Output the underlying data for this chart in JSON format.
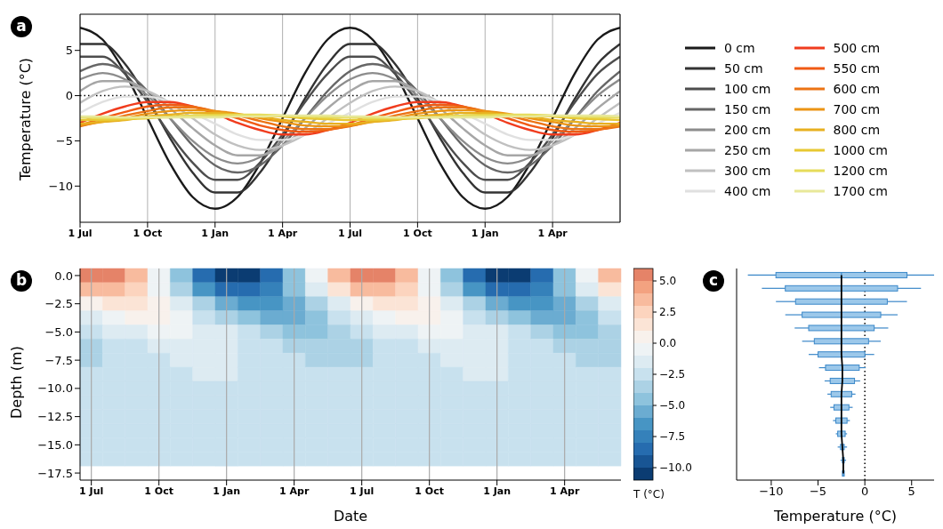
{
  "chart_data": [
    {
      "type": "line",
      "ylabel": "Temperature (°C)",
      "annotations": [
        "a"
      ],
      "legend": "right",
      "grid": "x",
      "categories": [
        "1 Jul",
        null,
        null,
        "1 Oct",
        null,
        null,
        "1 Jan",
        null,
        null,
        "1 Apr",
        null,
        null,
        "1 Jul",
        null,
        null,
        "1 Oct",
        null,
        null,
        "1 Jan",
        null,
        null,
        "1 Apr",
        null,
        null,
        null
      ],
      "ylim": [
        -14,
        9
      ],
      "yticks": [
        {
          "value": -10,
          "label": "−10"
        },
        {
          "value": -5,
          "label": "−5"
        },
        {
          "value": 0,
          "label": "0"
        },
        {
          "value": 5,
          "label": "5"
        }
      ],
      "ref_lines": [
        {
          "axis": "y",
          "value": 0,
          "color": "#000000",
          "line_style": "dotted"
        }
      ],
      "series": [
        {
          "name": "0 cm",
          "color": "#1a1a1a",
          "values": [
            7.5,
            6.2,
            2.5,
            -2.5,
            -7.5,
            -11.2,
            -12.5,
            -11.2,
            -7.5,
            -2.5,
            2.5,
            6.2,
            7.5,
            6.2,
            2.5,
            -2.5,
            -7.5,
            -11.2,
            -12.5,
            -11.2,
            -7.5,
            -2.5,
            2.5,
            6.2,
            7.5
          ]
        },
        {
          "name": "50 cm",
          "color": "#333333",
          "values": [
            5.7,
            5.7,
            3.5,
            -0.3,
            -4.7,
            -8.5,
            -10.7,
            -10.7,
            -8.5,
            -4.7,
            -0.3,
            3.5,
            5.7,
            5.7,
            3.5,
            -0.3,
            -4.7,
            -8.5,
            -10.7,
            -10.7,
            -8.5,
            -4.7,
            -0.3,
            3.5,
            5.7
          ]
        },
        {
          "name": "100 cm",
          "color": "#4d4d4d",
          "values": [
            4.3,
            4.3,
            2.4,
            -0.7,
            -4.3,
            -7.4,
            -9.3,
            -9.3,
            -7.4,
            -4.3,
            -0.7,
            2.4,
            4.3,
            4.3,
            2.4,
            -0.7,
            -4.3,
            -7.4,
            -9.3,
            -9.3,
            -7.4,
            -4.3,
            -0.7,
            2.4,
            4.3
          ]
        },
        {
          "name": "150 cm",
          "color": "#666666",
          "values": [
            2.7,
            3.5,
            2.7,
            0.5,
            -2.5,
            -5.5,
            -7.7,
            -8.5,
            -7.7,
            -5.5,
            -2.5,
            0.5,
            2.7,
            3.5,
            2.7,
            0.5,
            -2.5,
            -5.5,
            -7.7,
            -8.5,
            -7.7,
            -5.5,
            -2.5,
            0.5,
            2.7
          ]
        },
        {
          "name": "200 cm",
          "color": "#8c8c8c",
          "values": [
            1.8,
            2.5,
            1.8,
            0,
            -2.5,
            -5,
            -6.8,
            -7.5,
            -6.8,
            -5,
            -2.5,
            0,
            1.8,
            2.5,
            1.8,
            0,
            -2.5,
            -5,
            -6.8,
            -7.5,
            -6.8,
            -5,
            -2.5,
            0,
            1.8
          ]
        },
        {
          "name": "250 cm",
          "color": "#a6a6a6",
          "values": [
            0.5,
            1.6,
            1.6,
            0.5,
            -1.4,
            -3.6,
            -5.5,
            -6.6,
            -6.6,
            -5.5,
            -3.6,
            -1.4,
            0.5,
            1.6,
            1.6,
            0.5,
            -1.4,
            -3.6,
            -5.5,
            -6.6,
            -6.6,
            -5.5,
            -3.6,
            -1.4,
            0.5
          ]
        },
        {
          "name": "300 cm",
          "color": "#c0c0c0",
          "values": [
            -0.8,
            0.5,
            1,
            0.5,
            -0.8,
            -2.5,
            -4.3,
            -5.5,
            -6,
            -5.5,
            -4.3,
            -2.5,
            -0.8,
            0.5,
            1,
            0.5,
            -0.8,
            -2.5,
            -4.3,
            -5.5,
            -6,
            -5.5,
            -4.3,
            -2.5,
            -0.8
          ]
        },
        {
          "name": "400 cm",
          "color": "#e0e0e0",
          "values": [
            -1.9,
            -0.7,
            -0.1,
            -0.1,
            -0.7,
            -1.9,
            -3.1,
            -4.3,
            -4.9,
            -4.9,
            -4.3,
            -3.1,
            -1.9,
            -0.7,
            -0.1,
            -0.1,
            -0.7,
            -1.9,
            -3.1,
            -4.3,
            -4.9,
            -4.9,
            -4.3,
            -3.1,
            -1.9
          ]
        },
        {
          "name": "500 cm",
          "color": "#f03c1e",
          "values": [
            -3,
            -2,
            -1.2,
            -0.7,
            -0.7,
            -1.2,
            -2,
            -3,
            -3.8,
            -4.3,
            -4.3,
            -3.8,
            -3,
            -2,
            -1.2,
            -0.7,
            -0.7,
            -1.2,
            -2,
            -3,
            -3.8,
            -4.3,
            -4.3,
            -3.8,
            -3
          ]
        },
        {
          "name": "550 cm",
          "color": "#f05a14",
          "values": [
            -3.3,
            -2.5,
            -1.8,
            -1.2,
            -1,
            -1.2,
            -1.8,
            -2.5,
            -3.3,
            -3.8,
            -4,
            -3.8,
            -3.3,
            -2.5,
            -1.8,
            -1.2,
            -1,
            -1.2,
            -1.8,
            -2.5,
            -3.3,
            -3.8,
            -4,
            -3.8,
            -3.3
          ]
        },
        {
          "name": "600 cm",
          "color": "#ec7314",
          "values": [
            -3.4,
            -2.8,
            -2.2,
            -1.7,
            -1.3,
            -1.3,
            -1.7,
            -2.2,
            -2.8,
            -3.4,
            -3.7,
            -3.7,
            -3.4,
            -2.8,
            -2.2,
            -1.7,
            -1.3,
            -1.3,
            -1.7,
            -2.2,
            -2.8,
            -3.4,
            -3.7,
            -3.7,
            -3.4
          ]
        },
        {
          "name": "700 cm",
          "color": "#ec9414",
          "values": [
            -3.3,
            -2.9,
            -2.5,
            -2,
            -1.7,
            -1.6,
            -1.7,
            -2,
            -2.5,
            -2.9,
            -3.3,
            -3.4,
            -3.3,
            -2.9,
            -2.5,
            -2,
            -1.7,
            -1.6,
            -1.7,
            -2,
            -2.5,
            -2.9,
            -3.3,
            -3.4,
            -3.3
          ]
        },
        {
          "name": "800 cm",
          "color": "#e8b020",
          "values": [
            -3.1,
            -2.9,
            -2.7,
            -2.3,
            -2.1,
            -1.9,
            -1.9,
            -2.1,
            -2.3,
            -2.7,
            -2.9,
            -3.1,
            -3.1,
            -2.9,
            -2.7,
            -2.3,
            -2.1,
            -1.9,
            -1.9,
            -2.1,
            -2.3,
            -2.7,
            -2.9,
            -3.1,
            -3.1
          ]
        },
        {
          "name": "1000 cm",
          "color": "#e8c832",
          "values": [
            -2.7,
            -2.7,
            -2.6,
            -2.5,
            -2.3,
            -2.2,
            -2.1,
            -2.1,
            -2.2,
            -2.3,
            -2.5,
            -2.6,
            -2.7,
            -2.7,
            -2.6,
            -2.5,
            -2.3,
            -2.2,
            -2.1,
            -2.1,
            -2.2,
            -2.3,
            -2.5,
            -2.6,
            -2.7
          ]
        },
        {
          "name": "1200 cm",
          "color": "#e6dc5a",
          "values": [
            -2.4,
            -2.5,
            -2.5,
            -2.4,
            -2.4,
            -2.2,
            -2.2,
            -2.1,
            -2.1,
            -2.2,
            -2.3,
            -2.4,
            -2.4,
            -2.5,
            -2.5,
            -2.4,
            -2.4,
            -2.2,
            -2.2,
            -2.1,
            -2.1,
            -2.2,
            -2.3,
            -2.4,
            -2.4
          ]
        },
        {
          "name": "1700 cm",
          "color": "#e8e89a",
          "values": [
            -2.3,
            -2.3,
            -2.4,
            -2.4,
            -2.4,
            -2.4,
            -2.4,
            -2.3,
            -2.3,
            -2.2,
            -2.2,
            -2.2,
            -2.3,
            -2.3,
            -2.4,
            -2.4,
            -2.4,
            -2.4,
            -2.4,
            -2.3,
            -2.3,
            -2.2,
            -2.2,
            -2.2,
            -2.3
          ]
        }
      ]
    },
    {
      "type": "heatmap",
      "xlabel": "Date",
      "ylabel": "Depth (m)",
      "clabel": "T (°C)",
      "annotations": [
        "b"
      ],
      "grid": "x",
      "categories": [
        "1 Jul",
        null,
        null,
        "1 Oct",
        null,
        null,
        "1 Jan",
        null,
        null,
        "1 Apr",
        null,
        null,
        "1 Jul",
        null,
        null,
        "1 Oct",
        null,
        null,
        "1 Jan",
        null,
        null,
        "1 Apr",
        null,
        null
      ],
      "y_categories": [
        "0.0",
        null,
        "−2.5",
        null,
        "−5.0",
        null,
        "−7.5",
        null,
        "−10.0",
        null,
        "−12.5",
        null,
        "−15.0",
        null,
        "−17.5"
      ],
      "clim": [
        -11,
        6
      ],
      "cticks": [
        {
          "value": -10,
          "label": "−10.0"
        },
        {
          "value": -7.5,
          "label": "−7.5"
        },
        {
          "value": -5,
          "label": "−5.0"
        },
        {
          "value": -2.5,
          "label": "−2.5"
        },
        {
          "value": 0,
          "label": "0.0"
        },
        {
          "value": 2.5,
          "label": "2.5"
        },
        {
          "value": 5,
          "label": "5.0"
        }
      ],
      "cells": [
        [
          5.7,
          5.7,
          3.5,
          -0.3,
          -4.7,
          -8.5,
          -10.7,
          -10.7,
          -8.5,
          -4.7,
          -0.3,
          3.5,
          5.7,
          5.7,
          3.5,
          -0.3,
          -4.7,
          -8.5,
          -10.7,
          -10.7,
          -8.5,
          -4.7,
          -0.3,
          3.5
        ],
        [
          3.5,
          3.9,
          2.6,
          -0.1,
          -3.4,
          -6.5,
          -8.5,
          -8.9,
          -7.6,
          -4.9,
          -1.6,
          1.5,
          3.5,
          3.9,
          2.6,
          -0.1,
          -3.4,
          -6.5,
          -8.5,
          -8.9,
          -7.6,
          -4.9,
          -1.6,
          1.5
        ],
        [
          0.5,
          1.6,
          1.6,
          0.5,
          -1.4,
          -3.6,
          -5.5,
          -6.6,
          -6.6,
          -5.5,
          -3.6,
          -1.4,
          0.5,
          1.6,
          1.6,
          0.5,
          -1.4,
          -3.6,
          -5.5,
          -6.6,
          -6.6,
          -5.5,
          -3.6,
          -1.4
        ],
        [
          -1.6,
          -0.4,
          0.2,
          0.1,
          -0.7,
          -2.1,
          -3.4,
          -4.6,
          -5.2,
          -5.1,
          -4.3,
          -2.9,
          -1.6,
          -0.4,
          0.2,
          0.1,
          -0.7,
          -2.1,
          -3.4,
          -4.6,
          -5.2,
          -5.1,
          -4.3,
          -2.9
        ],
        [
          -3,
          -2,
          -1.2,
          -0.7,
          -0.7,
          -1.2,
          -2,
          -3,
          -3.8,
          -4.3,
          -4.3,
          -3.8,
          -3,
          -2,
          -1.2,
          -0.7,
          -0.7,
          -1.2,
          -2,
          -3,
          -3.8,
          -4.3,
          -4.3,
          -3.8
        ],
        [
          -3.4,
          -2.9,
          -2.4,
          -1.9,
          -1.5,
          -1.5,
          -1.7,
          -2.1,
          -2.6,
          -3.1,
          -3.5,
          -3.5,
          -3.4,
          -2.9,
          -2.4,
          -1.9,
          -1.5,
          -1.5,
          -1.7,
          -2.1,
          -2.6,
          -3.1,
          -3.5,
          -3.5
        ],
        [
          -3.2,
          -2.9,
          -2.6,
          -2.2,
          -1.9,
          -1.8,
          -1.8,
          -2.1,
          -2.4,
          -2.8,
          -3.1,
          -3.3,
          -3.2,
          -2.9,
          -2.6,
          -2.2,
          -1.9,
          -1.8,
          -1.8,
          -2.1,
          -2.4,
          -2.8,
          -3.1,
          -3.3
        ],
        [
          -2.9,
          -2.8,
          -2.7,
          -2.4,
          -2.2,
          -2,
          -2,
          -2.1,
          -2.3,
          -2.5,
          -2.7,
          -2.9,
          -2.9,
          -2.8,
          -2.7,
          -2.4,
          -2.2,
          -2,
          -2,
          -2.1,
          -2.3,
          -2.5,
          -2.7,
          -2.9
        ],
        [
          -2.7,
          -2.7,
          -2.6,
          -2.5,
          -2.3,
          -2.2,
          -2.1,
          -2.1,
          -2.2,
          -2.3,
          -2.5,
          -2.6,
          -2.7,
          -2.7,
          -2.6,
          -2.5,
          -2.3,
          -2.2,
          -2.1,
          -2.1,
          -2.2,
          -2.3,
          -2.5,
          -2.6
        ],
        [
          -2.5,
          -2.6,
          -2.5,
          -2.5,
          -2.3,
          -2.2,
          -2.1,
          -2.1,
          -2.2,
          -2.2,
          -2.4,
          -2.5,
          -2.5,
          -2.6,
          -2.5,
          -2.5,
          -2.3,
          -2.2,
          -2.1,
          -2.1,
          -2.2,
          -2.2,
          -2.4,
          -2.5
        ],
        [
          -2.4,
          -2.5,
          -2.5,
          -2.4,
          -2.4,
          -2.2,
          -2.2,
          -2.1,
          -2.1,
          -2.2,
          -2.3,
          -2.4,
          -2.4,
          -2.5,
          -2.5,
          -2.4,
          -2.4,
          -2.2,
          -2.2,
          -2.1,
          -2.1,
          -2.2,
          -2.3,
          -2.4
        ],
        [
          -2.3,
          -2.3,
          -2.4,
          -2.4,
          -2.4,
          -2.4,
          -2.4,
          -2.3,
          -2.3,
          -2.2,
          -2.2,
          -2.2,
          -2.3,
          -2.3,
          -2.4,
          -2.4,
          -2.4,
          -2.4,
          -2.4,
          -2.3,
          -2.3,
          -2.2,
          -2.2,
          -2.2
        ],
        [
          -2.3,
          -2.3,
          -2.4,
          -2.4,
          -2.4,
          -2.4,
          -2.4,
          -2.3,
          -2.3,
          -2.2,
          -2.2,
          -2.2,
          -2.3,
          -2.3,
          -2.4,
          -2.4,
          -2.4,
          -2.4,
          -2.4,
          -2.3,
          -2.3,
          -2.2,
          -2.2,
          -2.2
        ],
        [
          -2.3,
          -2.3,
          -2.4,
          -2.4,
          -2.4,
          -2.4,
          -2.4,
          -2.3,
          -2.3,
          -2.2,
          -2.2,
          -2.2,
          -2.3,
          -2.3,
          -2.4,
          -2.4,
          -2.4,
          -2.4,
          -2.4,
          -2.3,
          -2.3,
          -2.2,
          -2.2,
          -2.2
        ],
        [
          null,
          null,
          null,
          null,
          null,
          null,
          null,
          null,
          null,
          null,
          null,
          null,
          null,
          null,
          null,
          null,
          null,
          null,
          null,
          null,
          null,
          null,
          null,
          null
        ]
      ]
    },
    {
      "type": "box",
      "orientation": "horizontal",
      "xlabel": "Temperature (°C)",
      "annotations": [
        "c"
      ],
      "tick_labels": "x",
      "xlim": [
        -13.7,
        7.4
      ],
      "xticks": [
        {
          "value": -10,
          "label": "−10"
        },
        {
          "value": -5,
          "label": "−5"
        },
        {
          "value": 0,
          "label": "0"
        },
        {
          "value": 5,
          "label": "5"
        }
      ],
      "categories": [
        null,
        null,
        null,
        null,
        null,
        null,
        null,
        null,
        null,
        null,
        null,
        null,
        null,
        null,
        null,
        null
      ],
      "ref_lines": [
        {
          "axis": "x",
          "value": 0,
          "color": "#000000",
          "line_style": "dotted"
        }
      ],
      "series": [
        {
          "type": "box",
          "color": "#3a87c8",
          "boxes": [
            {
              "low": -12.5,
              "q1": -9.5,
              "median": -2.5,
              "q3": 4.5,
              "high": 7.5
            },
            {
              "low": -11,
              "q1": -8.5,
              "median": -2.5,
              "q3": 3.5,
              "high": 6
            },
            {
              "low": -9.5,
              "q1": -7.4,
              "median": -2.5,
              "q3": 2.4,
              "high": 4.5
            },
            {
              "low": -8.5,
              "q1": -6.7,
              "median": -2.5,
              "q3": 1.7,
              "high": 3.5
            },
            {
              "low": -7.5,
              "q1": -6,
              "median": -2.5,
              "q3": 1,
              "high": 2.5
            },
            {
              "low": -6.7,
              "q1": -5.4,
              "median": -2.5,
              "q3": 0.4,
              "high": 1.7
            },
            {
              "low": -6,
              "q1": -5,
              "median": -2.5,
              "q3": 0,
              "high": 1
            },
            {
              "low": -4.9,
              "q1": -4.2,
              "median": -2.4,
              "q3": -0.6,
              "high": 0.1
            },
            {
              "low": -4.3,
              "q1": -3.7,
              "median": -2.4,
              "q3": -1.1,
              "high": -0.5
            },
            {
              "low": -4,
              "q1": -3.6,
              "median": -2.5,
              "q3": -1.4,
              "high": -1
            },
            {
              "low": -3.7,
              "q1": -3.3,
              "median": -2.5,
              "q3": -1.7,
              "high": -1.3
            },
            {
              "low": -3.4,
              "q1": -3.1,
              "median": -2.5,
              "q3": -1.9,
              "high": -1.6
            },
            {
              "low": -3.1,
              "q1": -2.9,
              "median": -2.5,
              "q3": -2.1,
              "high": -1.9
            },
            {
              "low": -2.9,
              "q1": -2.6,
              "median": -2.4,
              "q3": -2.2,
              "high": -1.9
            },
            {
              "low": -2.6,
              "q1": -2.4,
              "median": -2.3,
              "q3": -2.2,
              "high": -2
            },
            {
              "low": -2.4,
              "q1": -2.4,
              "median": -2.3,
              "q3": -2.2,
              "high": -2.2
            }
          ]
        },
        {
          "type": "line",
          "color": "#000000",
          "values": [
            -2.5,
            -2.5,
            -2.5,
            -2.5,
            -2.5,
            -2.5,
            -2.5,
            -2.4,
            -2.4,
            -2.5,
            -2.5,
            -2.5,
            -2.5,
            -2.4,
            -2.3,
            -2.3
          ]
        }
      ]
    }
  ]
}
